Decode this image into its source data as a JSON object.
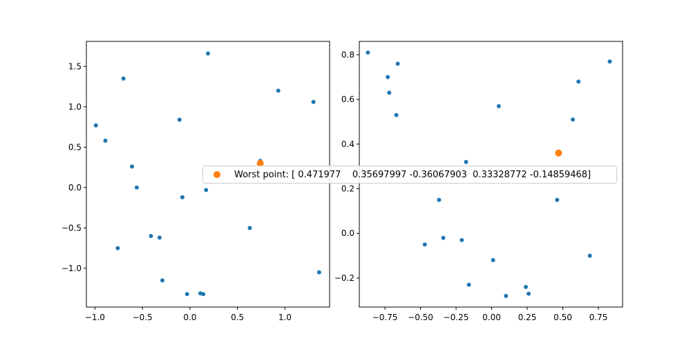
{
  "colors": {
    "points": "#1f77b4",
    "worst": "#ff7f0e",
    "axes": "#000000"
  },
  "legend": {
    "label": "Worst point: [ 0.471977    0.35697997 -0.36067903  0.33328772 -0.14859468]",
    "marker": "worst-point"
  },
  "chart_data": [
    {
      "type": "scatter",
      "xlim": [
        -1.09,
        1.47
      ],
      "ylim": [
        -1.48,
        1.81
      ],
      "xticks": [
        -1.0,
        -0.5,
        0.0,
        0.5,
        1.0
      ],
      "xtick_labels": [
        "−1.0",
        "−0.5",
        "0.0",
        "0.5",
        "1.0"
      ],
      "yticks": [
        -1.0,
        -0.5,
        0.0,
        0.5,
        1.0,
        1.5
      ],
      "ytick_labels": [
        "−1.0",
        "−0.5",
        "0.0",
        "0.5",
        "1.0",
        "1.5"
      ],
      "points": [
        [
          -0.99,
          0.77
        ],
        [
          -0.89,
          0.58
        ],
        [
          -0.7,
          1.35
        ],
        [
          -0.61,
          0.26
        ],
        [
          -0.56,
          0.0
        ],
        [
          -0.76,
          -0.75
        ],
        [
          -0.41,
          -0.6
        ],
        [
          -0.32,
          -0.62
        ],
        [
          -0.29,
          -1.15
        ],
        [
          -0.11,
          0.84
        ],
        [
          -0.08,
          -0.12
        ],
        [
          -0.03,
          -1.32
        ],
        [
          0.11,
          -1.31
        ],
        [
          0.14,
          -1.32
        ],
        [
          0.17,
          -0.03
        ],
        [
          0.19,
          1.66
        ],
        [
          0.63,
          -0.5
        ],
        [
          0.74,
          0.33
        ],
        [
          0.93,
          1.2
        ],
        [
          1.3,
          1.06
        ],
        [
          1.36,
          -1.05
        ]
      ],
      "worst_point": [
        0.74,
        0.3
      ]
    },
    {
      "type": "scatter",
      "xlim": [
        -0.93,
        0.92
      ],
      "ylim": [
        -0.33,
        0.86
      ],
      "xticks": [
        -0.75,
        -0.5,
        -0.25,
        0.0,
        0.25,
        0.5,
        0.75
      ],
      "xtick_labels": [
        "−0.75",
        "−0.50",
        "−0.25",
        "0.00",
        "0.25",
        "0.50",
        "0.75"
      ],
      "yticks": [
        -0.2,
        0.0,
        0.2,
        0.4,
        0.6,
        0.8
      ],
      "ytick_labels": [
        "−0.2",
        "0.0",
        "0.2",
        "0.4",
        "0.6",
        "0.8"
      ],
      "points": [
        [
          -0.87,
          0.81
        ],
        [
          -0.73,
          0.7
        ],
        [
          -0.72,
          0.63
        ],
        [
          -0.66,
          0.76
        ],
        [
          -0.67,
          0.53
        ],
        [
          -0.47,
          -0.05
        ],
        [
          -0.37,
          0.15
        ],
        [
          -0.34,
          -0.02
        ],
        [
          -0.21,
          -0.03
        ],
        [
          -0.18,
          0.32
        ],
        [
          -0.16,
          -0.23
        ],
        [
          0.01,
          -0.12
        ],
        [
          0.05,
          0.57
        ],
        [
          0.1,
          -0.28
        ],
        [
          0.24,
          -0.24
        ],
        [
          0.26,
          -0.27
        ],
        [
          0.46,
          0.15
        ],
        [
          0.57,
          0.51
        ],
        [
          0.61,
          0.68
        ],
        [
          0.69,
          -0.1
        ],
        [
          0.83,
          0.77
        ]
      ],
      "worst_point": [
        0.47,
        0.36
      ]
    }
  ]
}
